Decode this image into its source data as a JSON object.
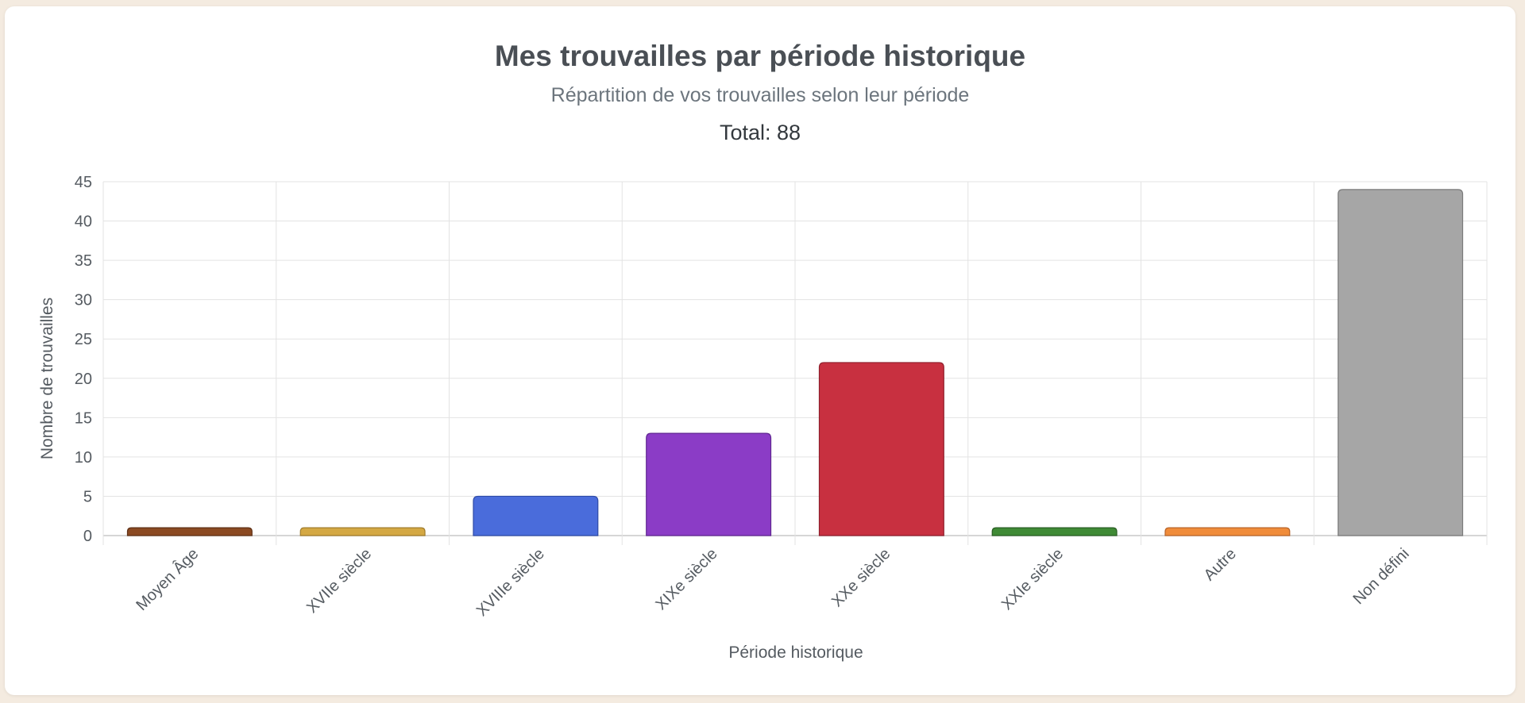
{
  "header": {
    "title": "Mes trouvailles par période historique",
    "subtitle": "Répartition de vos trouvailles selon leur période",
    "total": "Total: 88"
  },
  "chart_data": {
    "type": "bar",
    "xlabel": "Période historique",
    "ylabel": "Nombre de trouvailles",
    "ylim": [
      0,
      45
    ],
    "yticks": [
      0,
      5,
      10,
      15,
      20,
      25,
      30,
      35,
      40,
      45
    ],
    "grid": true,
    "categories": [
      "Moyen Âge",
      "XVIIe siècle",
      "XVIIIe siècle",
      "XIXe siècle",
      "XXe siècle",
      "XXIe siècle",
      "Autre",
      "Non défini"
    ],
    "values": [
      1,
      1,
      5,
      13,
      22,
      1,
      1,
      44
    ],
    "colors": [
      "#8b4a22",
      "#d4a843",
      "#4a6cdb",
      "#8b3cc6",
      "#c83040",
      "#3f8a35",
      "#f08c3a",
      "#a6a6a6"
    ],
    "border_colors": [
      "#5e3016",
      "#a07c2c",
      "#2f4ba6",
      "#5f2690",
      "#8e1f2c",
      "#2a5e24",
      "#b8652a",
      "#7a7a7a"
    ]
  }
}
